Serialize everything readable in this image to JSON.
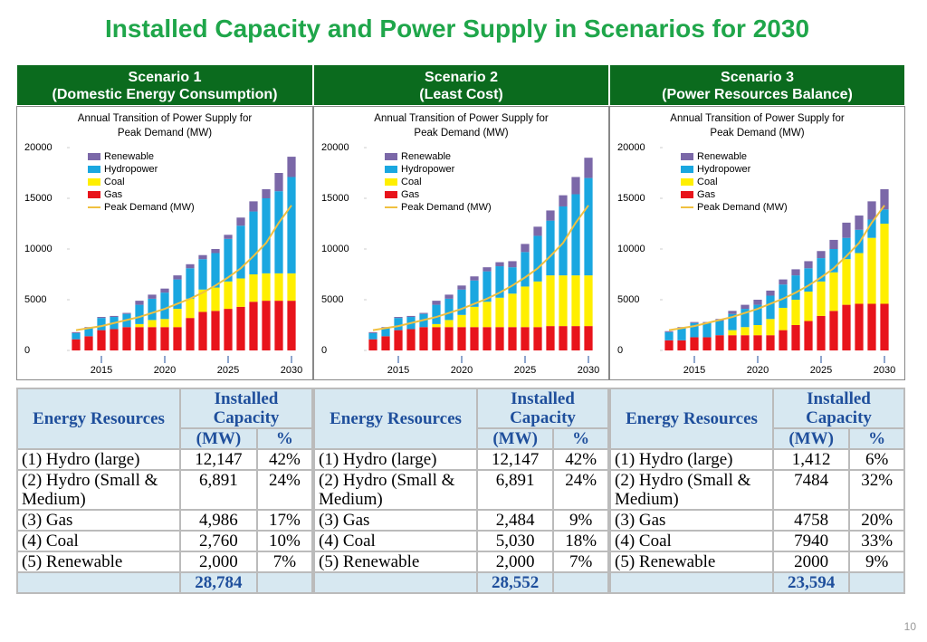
{
  "title": "Installed Capacity and Power Supply in Scenarios for 2030",
  "headers": [
    [
      "Scenario 1",
      "(Domestic Energy Consumption)"
    ],
    [
      "Scenario 2",
      "(Least Cost)"
    ],
    [
      "Scenario 3",
      "(Power Resources Balance)"
    ]
  ],
  "chart_data": [
    {
      "type": "bar",
      "stacked": true,
      "title": "Annual Transition of Power Supply for Peak Demand (MW)",
      "categories": [
        null,
        null,
        "2015",
        null,
        null,
        null,
        null,
        "2020",
        null,
        null,
        null,
        null,
        "2025",
        null,
        null,
        null,
        null,
        "2030"
      ],
      "ylim": [
        0,
        20000
      ],
      "yticks": [
        0,
        5000,
        10000,
        15000,
        20000
      ],
      "legend": "top-left",
      "series": [
        {
          "name": "Gas",
          "color": "#e8141b",
          "values": [
            1100,
            1400,
            2000,
            2100,
            2300,
            2300,
            2300,
            2300,
            2300,
            3200,
            3800,
            3900,
            4100,
            4300,
            4800,
            4900,
            4900,
            4900
          ]
        },
        {
          "name": "Coal",
          "color": "#ffef00",
          "values": [
            0,
            0,
            0,
            0,
            0,
            300,
            700,
            800,
            1800,
            1900,
            2200,
            2300,
            2700,
            2800,
            2700,
            2700,
            2700,
            2700
          ]
        },
        {
          "name": "Hydropower",
          "color": "#1aa7e0",
          "values": [
            600,
            800,
            1200,
            1200,
            1300,
            1900,
            2100,
            2600,
            2900,
            3000,
            3000,
            3400,
            4200,
            5200,
            6200,
            7400,
            8100,
            9500
          ]
        },
        {
          "name": "Renewable",
          "color": "#7b68a8",
          "values": [
            100,
            100,
            100,
            100,
            100,
            400,
            400,
            400,
            400,
            400,
            400,
            400,
            400,
            800,
            1000,
            900,
            1800,
            2000
          ]
        }
      ],
      "line_series": {
        "name": "Peak Demand (MW)",
        "color": "#f0c040",
        "values": [
          2000,
          2200,
          2400,
          2700,
          3000,
          3300,
          3700,
          4100,
          4600,
          5100,
          5700,
          6400,
          7200,
          8100,
          9300,
          10600,
          12600,
          14300
        ]
      }
    },
    {
      "type": "bar",
      "stacked": true,
      "title": "Annual Transition of Power Supply for Peak Demand (MW)",
      "categories": [
        null,
        null,
        "2015",
        null,
        null,
        null,
        null,
        "2020",
        null,
        null,
        null,
        null,
        "2025",
        null,
        null,
        null,
        null,
        "2030"
      ],
      "ylim": [
        0,
        20000
      ],
      "yticks": [
        0,
        5000,
        10000,
        15000,
        20000
      ],
      "legend": "top-left",
      "series": [
        {
          "name": "Gas",
          "color": "#e8141b",
          "values": [
            1100,
            1400,
            2000,
            2100,
            2300,
            2300,
            2300,
            2300,
            2300,
            2300,
            2300,
            2300,
            2300,
            2300,
            2400,
            2400,
            2400,
            2400
          ]
        },
        {
          "name": "Coal",
          "color": "#ffef00",
          "values": [
            0,
            0,
            0,
            0,
            0,
            300,
            700,
            1200,
            2000,
            2500,
            2900,
            3300,
            4000,
            4500,
            5000,
            5000,
            5000,
            5000
          ]
        },
        {
          "name": "Hydropower",
          "color": "#1aa7e0",
          "values": [
            600,
            800,
            1200,
            1200,
            1300,
            1900,
            2100,
            2500,
            2600,
            3000,
            3100,
            2600,
            3400,
            4500,
            5400,
            6800,
            8000,
            9600
          ]
        },
        {
          "name": "Renewable",
          "color": "#7b68a8",
          "values": [
            100,
            100,
            100,
            100,
            100,
            400,
            400,
            400,
            400,
            400,
            400,
            600,
            800,
            900,
            1000,
            1100,
            1700,
            2000
          ]
        }
      ],
      "line_series": {
        "name": "Peak Demand (MW)",
        "color": "#f0c040",
        "values": [
          2000,
          2200,
          2400,
          2700,
          3000,
          3300,
          3700,
          4100,
          4600,
          5100,
          5700,
          6400,
          7200,
          8100,
          9300,
          10600,
          12600,
          14300
        ]
      }
    },
    {
      "type": "bar",
      "stacked": true,
      "title": "Annual Transition of Power Supply for Peak Demand (MW)",
      "categories": [
        null,
        null,
        "2015",
        null,
        null,
        null,
        null,
        "2020",
        null,
        null,
        null,
        null,
        "2025",
        null,
        null,
        null,
        null,
        "2030"
      ],
      "ylim": [
        0,
        20000
      ],
      "yticks": [
        0,
        5000,
        10000,
        15000,
        20000
      ],
      "legend": "top-left",
      "series": [
        {
          "name": "Gas",
          "color": "#e8141b",
          "values": [
            1000,
            1000,
            1300,
            1300,
            1500,
            1500,
            1500,
            1500,
            1500,
            2000,
            2500,
            2900,
            3400,
            3900,
            4500,
            4600,
            4600,
            4600
          ]
        },
        {
          "name": "Coal",
          "color": "#ffef00",
          "values": [
            0,
            0,
            0,
            0,
            0,
            500,
            800,
            1000,
            1600,
            2200,
            2500,
            2900,
            3400,
            3800,
            4500,
            5000,
            6500,
            7900
          ]
        },
        {
          "name": "Hydropower",
          "color": "#1aa7e0",
          "values": [
            800,
            1200,
            1400,
            1400,
            1400,
            1600,
            1800,
            2000,
            2300,
            2300,
            2400,
            2300,
            2300,
            2300,
            2100,
            2300,
            1800,
            1400
          ]
        },
        {
          "name": "Renewable",
          "color": "#7b68a8",
          "values": [
            100,
            100,
            100,
            100,
            200,
            300,
            400,
            500,
            500,
            500,
            600,
            700,
            700,
            900,
            1500,
            1400,
            1800,
            2000
          ]
        }
      ],
      "line_series": {
        "name": "Peak Demand (MW)",
        "color": "#f0c040",
        "values": [
          2000,
          2200,
          2400,
          2700,
          3000,
          3300,
          3700,
          4100,
          4600,
          5100,
          5700,
          6400,
          7200,
          8100,
          9300,
          10600,
          12600,
          14300
        ]
      }
    }
  ],
  "tables": [
    {
      "header": [
        "Energy Resources",
        "Installed Capacity",
        "(MW)",
        "%"
      ],
      "rows": [
        [
          "(1) Hydro (large)",
          "12,147",
          "42%"
        ],
        [
          "(2) Hydro (Small & Medium)",
          "6,891",
          "24%"
        ],
        [
          "(3) Gas",
          "4,986",
          "17%"
        ],
        [
          "(4) Coal",
          "2,760",
          "10%"
        ],
        [
          "(5) Renewable",
          "2,000",
          "7%"
        ]
      ],
      "total": "28,784"
    },
    {
      "header": [
        "Energy Resources",
        "Installed Capacity",
        "(MW)",
        "%"
      ],
      "rows": [
        [
          "(1) Hydro (large)",
          "12,147",
          "42%"
        ],
        [
          "(2) Hydro (Small & Medium)",
          "6,891",
          "24%"
        ],
        [
          "(3) Gas",
          "2,484",
          "9%"
        ],
        [
          "(4) Coal",
          "5,030",
          "18%"
        ],
        [
          "(5) Renewable",
          "2,000",
          "7%"
        ]
      ],
      "total": "28,552"
    },
    {
      "header": [
        "Energy Resources",
        "Installed Capacity",
        "(MW)",
        "%"
      ],
      "rows": [
        [
          "(1) Hydro (large)",
          "1,412",
          "6%"
        ],
        [
          "(2) Hydro (Small & Medium)",
          "7484",
          "32%"
        ],
        [
          "(3) Gas",
          "4758",
          "20%"
        ],
        [
          "(4) Coal",
          "7940",
          "33%"
        ],
        [
          "(5) Renewable",
          "2000",
          "9%"
        ]
      ],
      "total": "23,594"
    }
  ],
  "page_number": "10"
}
